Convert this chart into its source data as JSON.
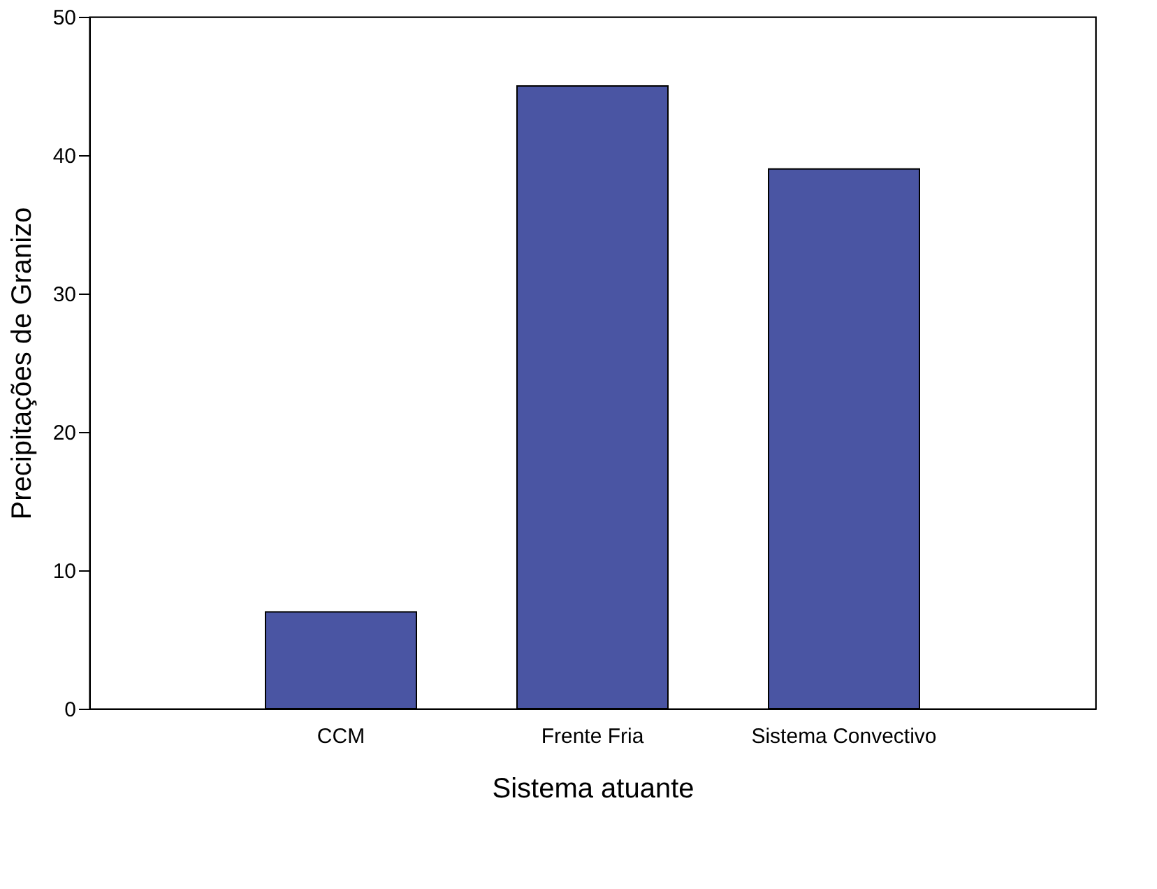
{
  "chart_data": {
    "type": "bar",
    "xlabel": "Sistema atuante",
    "ylabel": "Precipitações de Granizo",
    "categories": [
      "CCM",
      "Frente Fria",
      "Sistema Convectivo"
    ],
    "values": [
      7,
      45,
      39
    ],
    "color": "#4a55a3",
    "ylim": [
      0,
      50
    ],
    "yticks": [
      0,
      10,
      20,
      30,
      40,
      50
    ],
    "grid": false
  }
}
